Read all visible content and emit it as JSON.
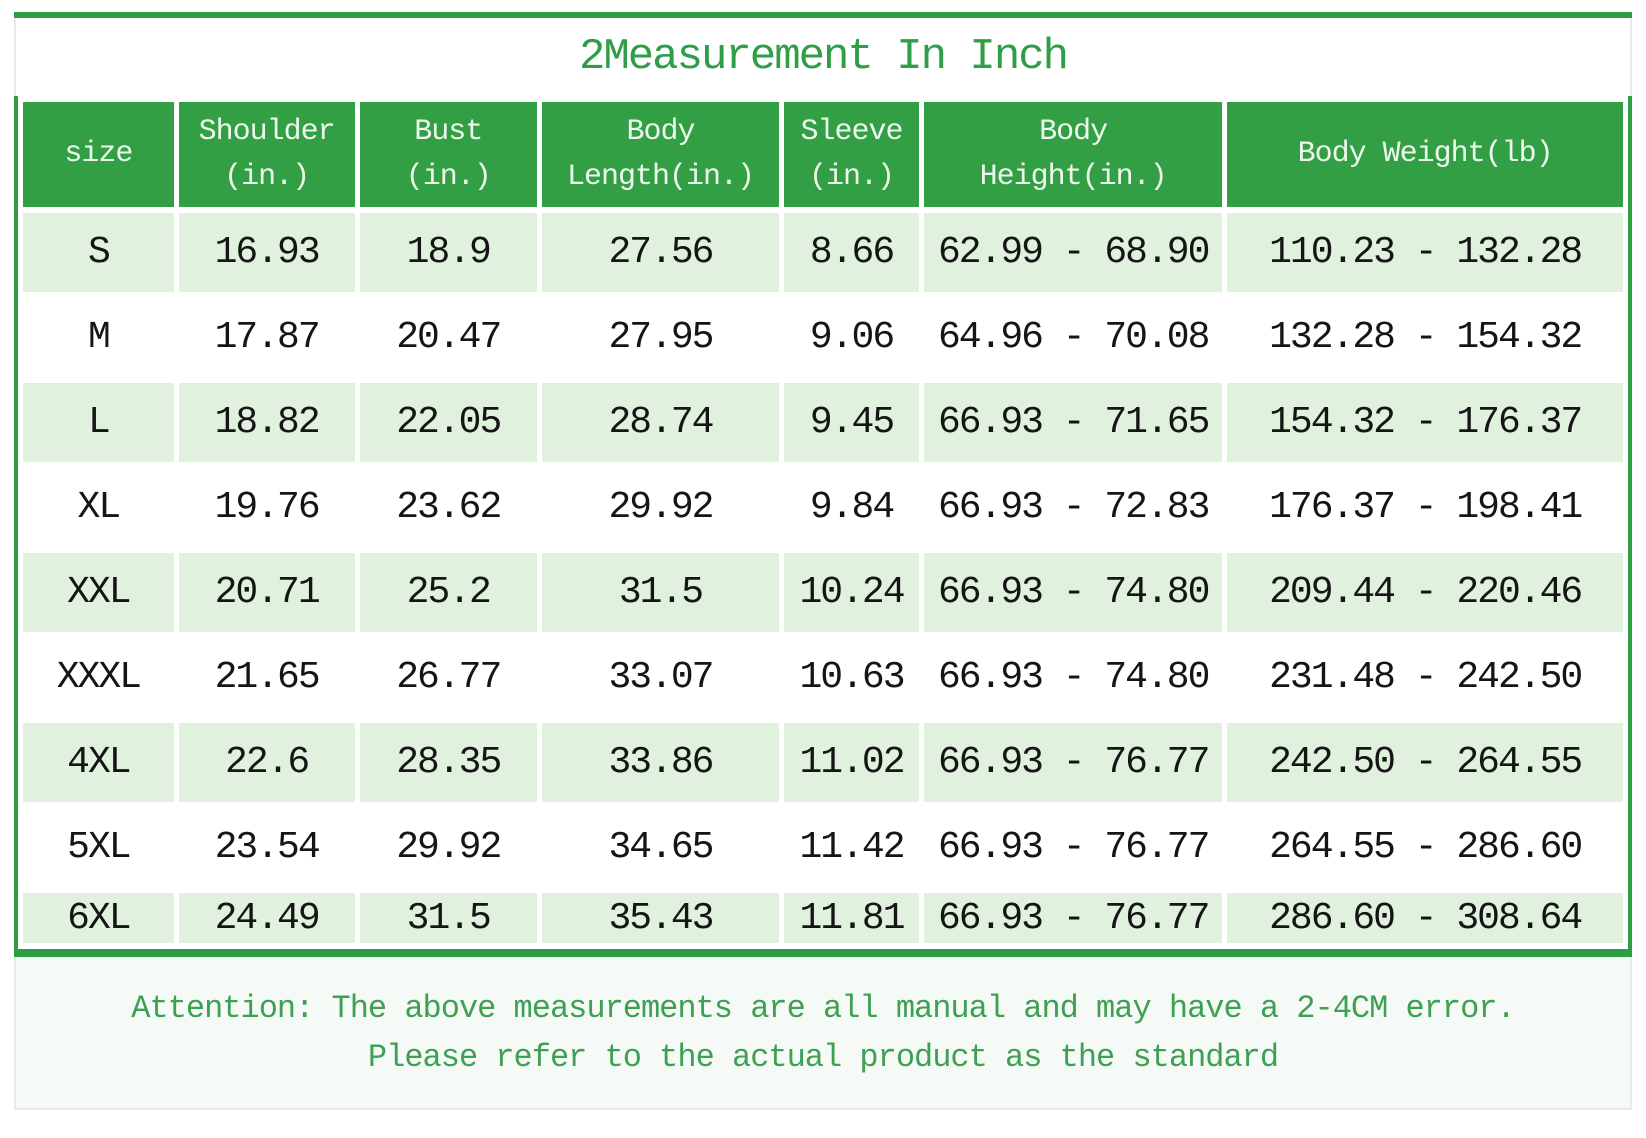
{
  "title": "2Measurement In Inch",
  "chart_data": {
    "type": "table",
    "title": "2Measurement In Inch",
    "columns": [
      "size",
      "Shoulder\n(in.)",
      "Bust\n(in.)",
      "Body\nLength(in.)",
      "Sleeve\n(in.)",
      "Body\nHeight(in.)",
      "Body Weight(lb)"
    ],
    "rows": [
      [
        "S",
        "16.93",
        "18.9",
        "27.56",
        "8.66",
        "62.99 - 68.90",
        "110.23 - 132.28"
      ],
      [
        "M",
        "17.87",
        "20.47",
        "27.95",
        "9.06",
        "64.96 - 70.08",
        "132.28 - 154.32"
      ],
      [
        "L",
        "18.82",
        "22.05",
        "28.74",
        "9.45",
        "66.93 - 71.65",
        "154.32 - 176.37"
      ],
      [
        "XL",
        "19.76",
        "23.62",
        "29.92",
        "9.84",
        "66.93 - 72.83",
        "176.37 - 198.41"
      ],
      [
        "XXL",
        "20.71",
        "25.2",
        "31.5",
        "10.24",
        "66.93 - 74.80",
        "209.44 - 220.46"
      ],
      [
        "XXXL",
        "21.65",
        "26.77",
        "33.07",
        "10.63",
        "66.93 - 74.80",
        "231.48 - 242.50"
      ],
      [
        "4XL",
        "22.6",
        "28.35",
        "33.86",
        "11.02",
        "66.93 - 76.77",
        "242.50 - 264.55"
      ],
      [
        "5XL",
        "23.54",
        "29.92",
        "34.65",
        "11.42",
        "66.93 - 76.77",
        "264.55 - 286.60"
      ],
      [
        "6XL",
        "24.49",
        "31.5",
        "35.43",
        "11.81",
        "66.93 - 76.77",
        "286.60 - 308.64"
      ]
    ]
  },
  "note": {
    "line1": "Attention: The above measurements are all manual and may have a 2-4CM error.",
    "line2": "Please refer to the actual product as the standard"
  },
  "colors": {
    "header_green": "#339f45",
    "border_green": "#2f9e43",
    "row_light_green": "#e0f1de",
    "title_green": "#2f9e48",
    "note_green": "#3da053"
  }
}
